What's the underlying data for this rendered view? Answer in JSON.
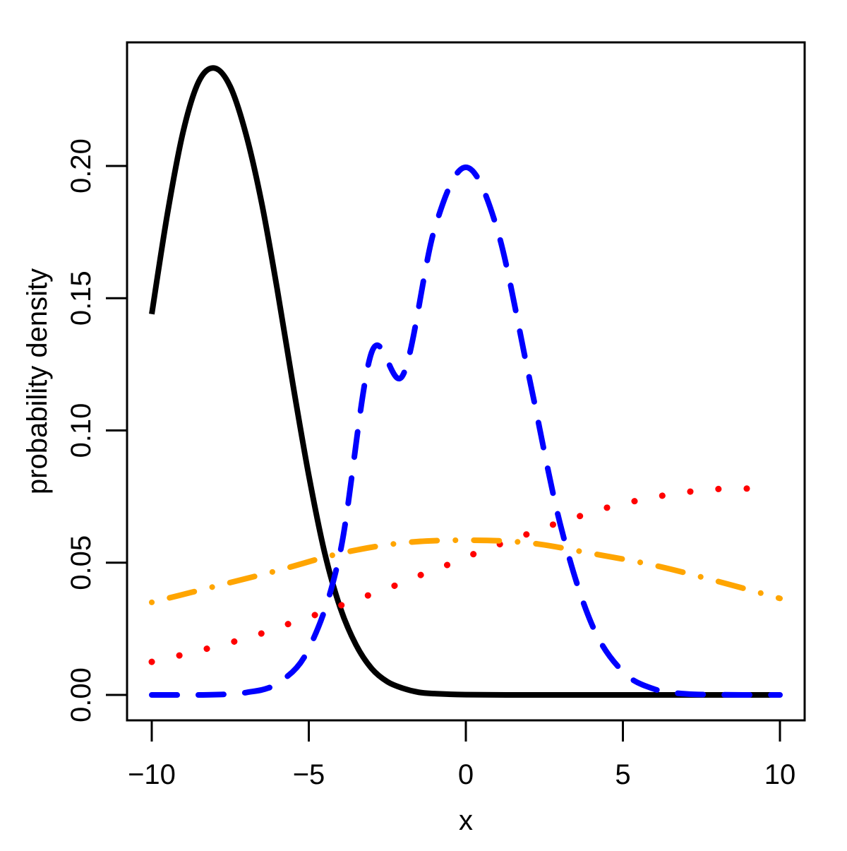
{
  "chart_data": {
    "type": "line",
    "title": "",
    "xlabel": "x",
    "ylabel": "probability density",
    "xlim": [
      -10,
      10
    ],
    "ylim": [
      0,
      0.237
    ],
    "grid": false,
    "x_ticks": [
      "−10",
      "−5",
      "0",
      "5",
      "10"
    ],
    "x_tick_values": [
      -10,
      -5,
      0,
      5,
      10
    ],
    "y_ticks": [
      "0.00",
      "0.05",
      "0.10",
      "0.15",
      "0.20"
    ],
    "y_tick_values": [
      0,
      0.05,
      0.1,
      0.15,
      0.2
    ],
    "series": [
      {
        "color": "#000000",
        "style": "solid",
        "x": [
          -10,
          -9.5,
          -9,
          -8.5,
          -8,
          -7.5,
          -7,
          -6.5,
          -6,
          -5.5,
          -5,
          -4.5,
          -4,
          -3.5,
          -3,
          -2.5,
          -2,
          -1.5,
          -1,
          0,
          2,
          4,
          6,
          8,
          10
        ],
        "y": [
          0.144,
          0.182,
          0.213,
          0.232,
          0.237,
          0.23,
          0.212,
          0.186,
          0.153,
          0.117,
          0.083,
          0.054,
          0.033,
          0.019,
          0.01,
          0.005,
          0.0025,
          0.001,
          0.0005,
          0.0001,
          0,
          0,
          0,
          0,
          0
        ]
      },
      {
        "color": "#0000ff",
        "style": "dashed",
        "x": [
          -10,
          -9,
          -8,
          -7,
          -6,
          -5,
          -4,
          -3,
          -2,
          -1,
          0,
          1,
          2,
          3,
          4,
          5,
          6,
          7,
          8,
          9,
          10
        ],
        "y": [
          0,
          0,
          0.0001,
          0.0009,
          0.0044,
          0.0175,
          0.054,
          0.1295,
          0.121,
          0.176,
          0.1995,
          0.176,
          0.121,
          0.0648,
          0.027,
          0.0088,
          0.0022,
          0.0004,
          0.0001,
          0,
          0
        ]
      },
      {
        "color": "#ff0000",
        "style": "dotted",
        "x": [
          -10,
          -9.2,
          -8.4,
          -7.6,
          -6.8,
          -6,
          -5.2,
          -4.4,
          -3.6,
          -2.8,
          -2,
          -1.2,
          -0.4,
          0.4,
          1.2,
          2,
          2.8,
          3.6,
          4.4,
          5.2,
          6,
          6.8,
          7.6,
          8.4,
          9.4
        ],
        "y": [
          0.0125,
          0.0147,
          0.017,
          0.0195,
          0.022,
          0.0255,
          0.0285,
          0.032,
          0.0355,
          0.039,
          0.0425,
          0.0465,
          0.05,
          0.054,
          0.0575,
          0.061,
          0.0645,
          0.0675,
          0.0705,
          0.0728,
          0.0748,
          0.0763,
          0.0775,
          0.078,
          0.078
        ]
      },
      {
        "color": "#ffa500",
        "style": "dotdash",
        "x": [
          -10,
          -8,
          -6,
          -4,
          -2,
          0,
          2,
          4,
          6,
          8,
          10
        ],
        "y": [
          0.035,
          0.041,
          0.047,
          0.0535,
          0.0575,
          0.0585,
          0.0575,
          0.0535,
          0.049,
          0.043,
          0.0365
        ]
      }
    ]
  }
}
